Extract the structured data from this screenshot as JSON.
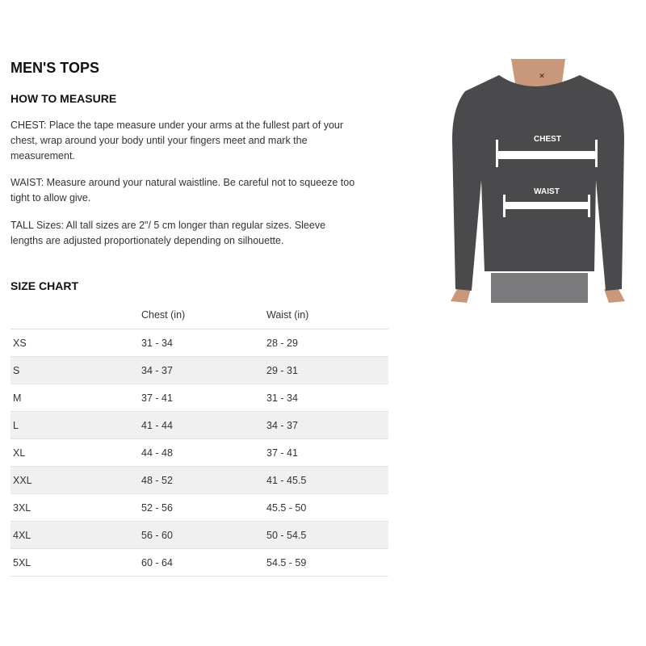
{
  "title": "MEN'S TOPS",
  "how_to": {
    "heading": "HOW TO MEASURE",
    "chest": "CHEST: Place the tape measure under your arms at the fullest part of your chest, wrap around your body until your fingers meet and mark the measurement.",
    "waist": "WAIST: Measure around your natural waistline. Be careful not to squeeze too tight to allow give.",
    "tall": "TALL Sizes: All tall sizes are 2\"/ 5 cm longer than regular sizes. Sleeve lengths are adjusted proportionately depending on silhouette."
  },
  "size_chart": {
    "heading": "SIZE CHART",
    "columns": [
      "",
      "Chest (in)",
      "Waist (in)"
    ],
    "rows": [
      [
        "XS",
        "31 - 34",
        "28 - 29"
      ],
      [
        "S",
        "34 - 37",
        "29 - 31"
      ],
      [
        "M",
        "37 - 41",
        "31 - 34"
      ],
      [
        "L",
        "41 - 44",
        "34 - 37"
      ],
      [
        "XL",
        "44 - 48",
        "37 - 41"
      ],
      [
        "XXL",
        "48 - 52",
        "41 - 45.5"
      ],
      [
        "3XL",
        "52 - 56",
        "45.5 - 50"
      ],
      [
        "4XL",
        "56 - 60",
        "50 - 54.5"
      ],
      [
        "5XL",
        "60 - 64",
        "54.5 - 59"
      ]
    ]
  },
  "image": {
    "chest_label": "CHEST",
    "waist_label": "WAIST",
    "shirt_color": "#4a4a4c"
  }
}
